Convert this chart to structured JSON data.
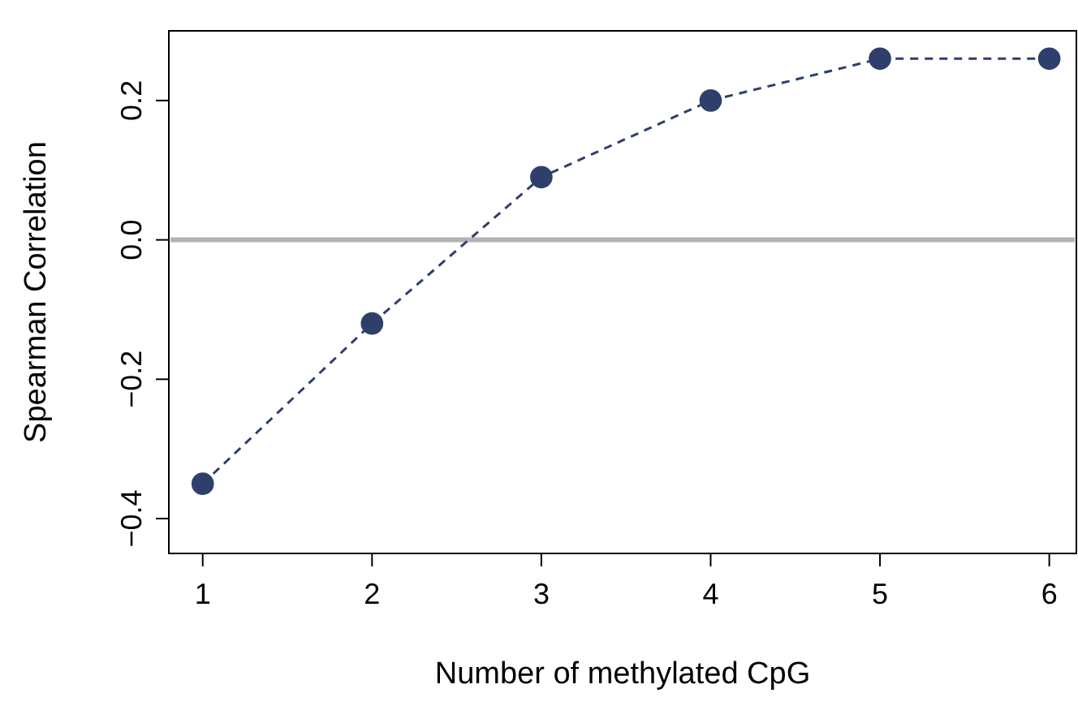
{
  "chart_data": {
    "type": "line",
    "xlabel": "Number of methylated CpG",
    "ylabel": "Spearman Correlation",
    "x": [
      1,
      2,
      3,
      4,
      5,
      6
    ],
    "series": [
      {
        "color": "#2e3f6b",
        "values": [
          -0.35,
          -0.12,
          0.09,
          0.2,
          0.26,
          0.26
        ]
      }
    ],
    "xlim": [
      0.8,
      6.16
    ],
    "xticks": [
      1,
      2,
      3,
      4,
      5,
      6
    ],
    "ylim": [
      -0.45,
      0.3
    ],
    "yticks": [
      {
        "value": -0.4,
        "label": "−0.4"
      },
      {
        "value": -0.2,
        "label": "−0.2"
      },
      {
        "value": 0,
        "label": "0.0"
      },
      {
        "value": 0.2,
        "label": "0.2"
      }
    ],
    "ref_lines": [
      {
        "axis": "y",
        "value": 0,
        "color": "#b3b3b3"
      }
    ],
    "marker": "circle",
    "line_style": "dashed"
  }
}
